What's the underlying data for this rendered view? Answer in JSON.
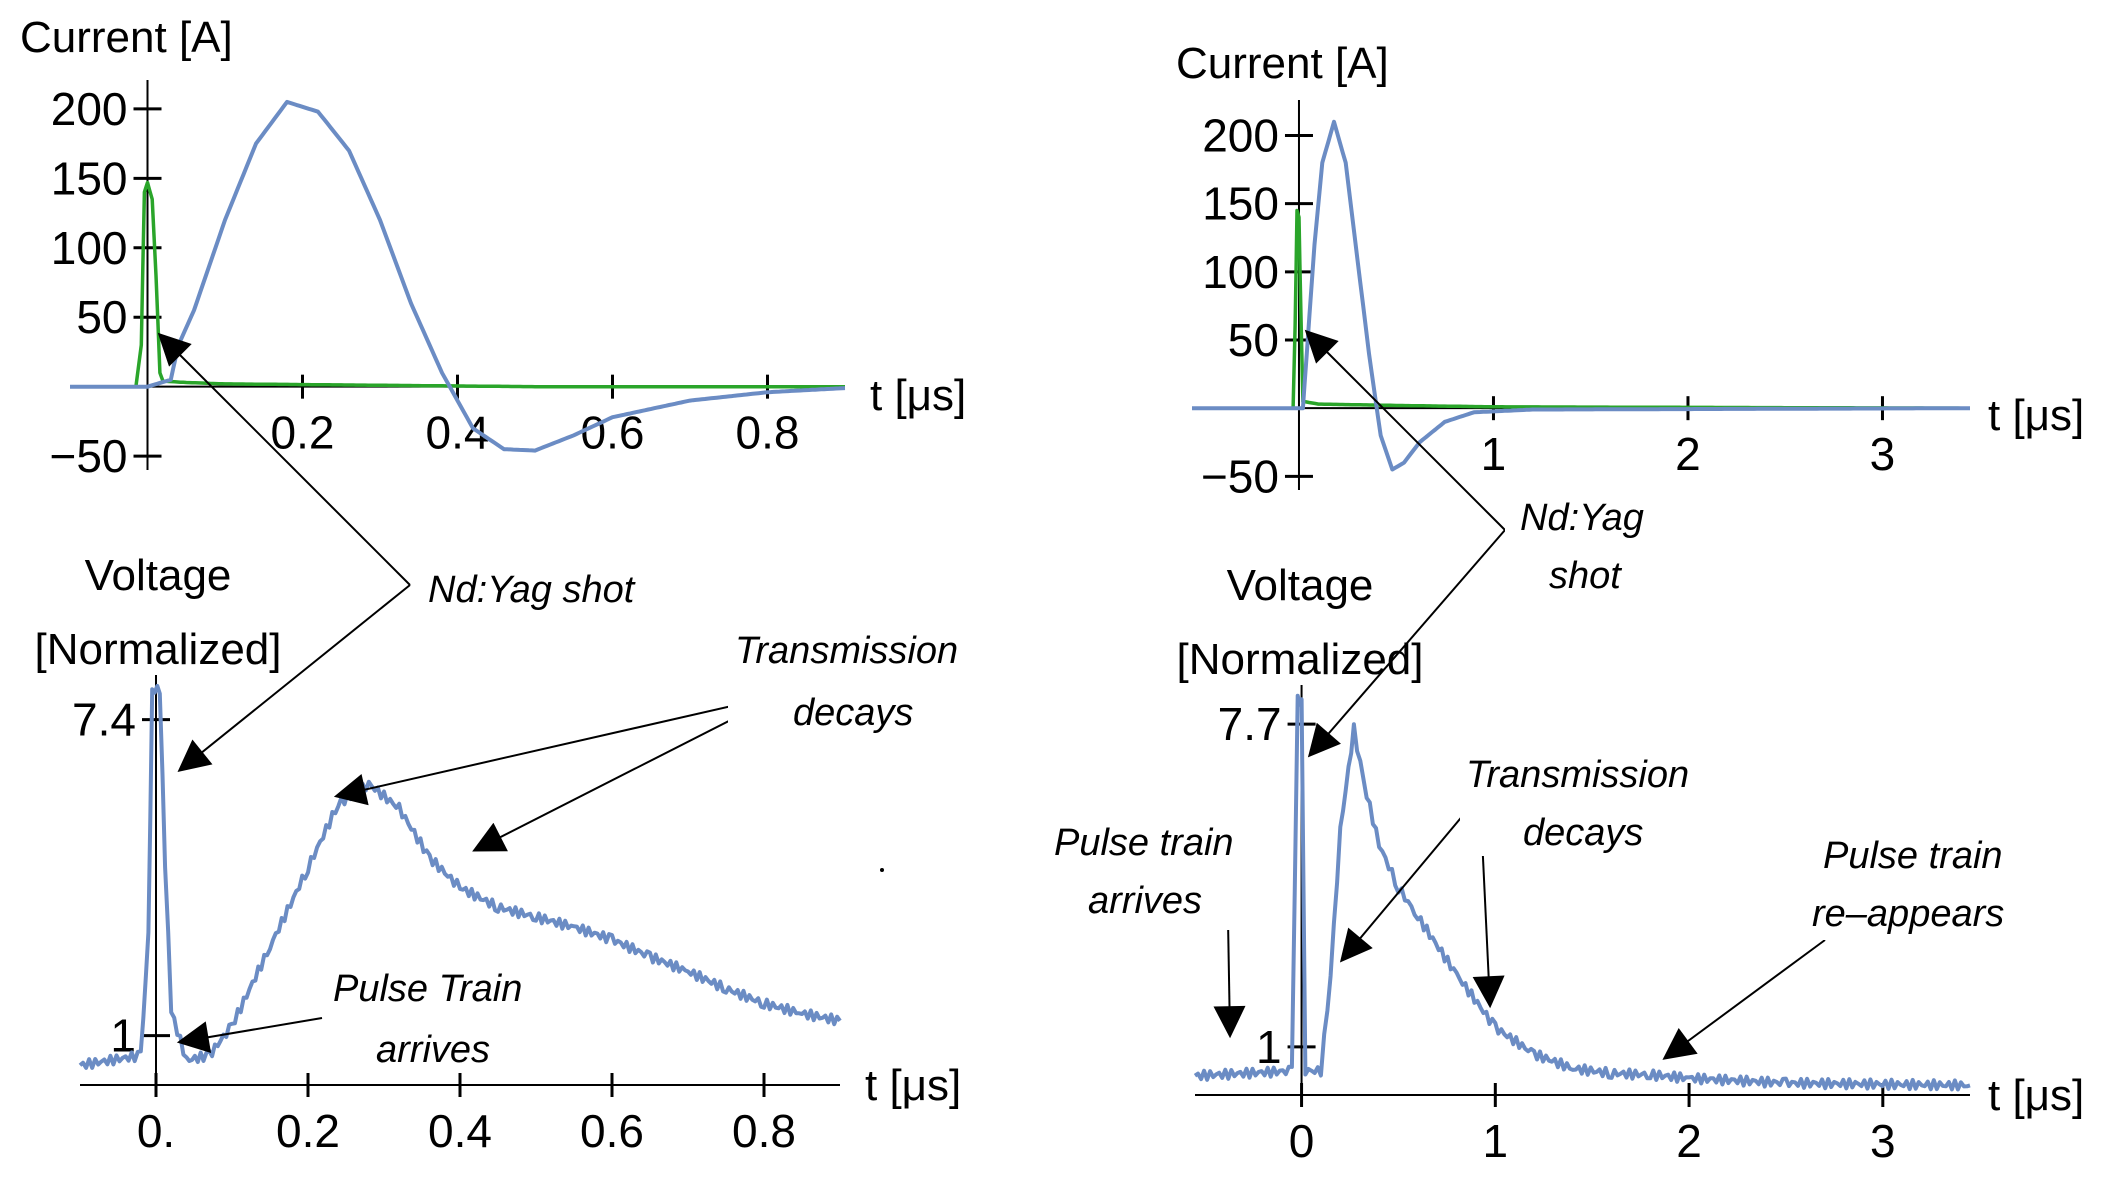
{
  "colors": {
    "laser": "#2aa52a",
    "signal": "#6b8cc4",
    "axis": "#000000"
  },
  "chart_data": [
    {
      "id": "left-current",
      "type": "line",
      "ylabel": "Current [A]",
      "xlabel": "t [μs]",
      "xlim": [
        -0.1,
        0.9
      ],
      "ylim": [
        -60,
        210
      ],
      "x_ticks": [
        "0.2",
        "0.4",
        "0.6",
        "0.8"
      ],
      "x_tick_values": [
        0.2,
        0.4,
        0.6,
        0.8
      ],
      "y_ticks": [
        "200",
        "150",
        "100",
        "50",
        "−50"
      ],
      "y_tick_values": [
        200,
        150,
        100,
        50,
        -50
      ],
      "series": [
        {
          "color": "#2aa52a",
          "points": [
            [
              -0.1,
              0
            ],
            [
              -0.015,
              0
            ],
            [
              -0.008,
              30
            ],
            [
              -0.004,
              140
            ],
            [
              0.0,
              147
            ],
            [
              0.006,
              135
            ],
            [
              0.011,
              80
            ],
            [
              0.016,
              10
            ],
            [
              0.02,
              4
            ],
            [
              0.05,
              3
            ],
            [
              0.1,
              2
            ],
            [
              0.3,
              1
            ],
            [
              0.5,
              0
            ],
            [
              0.9,
              0
            ]
          ]
        },
        {
          "color": "#6b8cc4",
          "points": [
            [
              -0.1,
              0
            ],
            [
              0.0,
              0
            ],
            [
              0.03,
              5
            ],
            [
              0.04,
              30
            ],
            [
              0.06,
              55
            ],
            [
              0.1,
              120
            ],
            [
              0.14,
              175
            ],
            [
              0.18,
              205
            ],
            [
              0.22,
              198
            ],
            [
              0.26,
              170
            ],
            [
              0.3,
              120
            ],
            [
              0.34,
              60
            ],
            [
              0.38,
              10
            ],
            [
              0.42,
              -30
            ],
            [
              0.46,
              -45
            ],
            [
              0.5,
              -46
            ],
            [
              0.55,
              -35
            ],
            [
              0.6,
              -22
            ],
            [
              0.7,
              -10
            ],
            [
              0.8,
              -4
            ],
            [
              0.9,
              -1
            ]
          ]
        }
      ]
    },
    {
      "id": "right-current",
      "type": "line",
      "ylabel": "Current [A]",
      "xlabel": "t [μs]",
      "xlim": [
        -0.55,
        3.45
      ],
      "ylim": [
        -60,
        215
      ],
      "x_ticks": [
        "1",
        "2",
        "3"
      ],
      "x_tick_values": [
        1,
        2,
        3
      ],
      "y_ticks": [
        "200",
        "150",
        "100",
        "50",
        "−50"
      ],
      "y_tick_values": [
        200,
        150,
        100,
        50,
        -50
      ],
      "series": [
        {
          "color": "#2aa52a",
          "points": [
            [
              -0.55,
              0
            ],
            [
              -0.03,
              0
            ],
            [
              -0.02,
              60
            ],
            [
              -0.01,
              145
            ],
            [
              0.0,
              140
            ],
            [
              0.01,
              70
            ],
            [
              0.02,
              5
            ],
            [
              0.1,
              3
            ],
            [
              0.5,
              2
            ],
            [
              1.0,
              1
            ],
            [
              3.45,
              0
            ]
          ]
        },
        {
          "color": "#6b8cc4",
          "points": [
            [
              -0.55,
              0
            ],
            [
              0.02,
              0
            ],
            [
              0.04,
              40
            ],
            [
              0.08,
              120
            ],
            [
              0.12,
              180
            ],
            [
              0.18,
              210
            ],
            [
              0.24,
              180
            ],
            [
              0.3,
              110
            ],
            [
              0.36,
              40
            ],
            [
              0.42,
              -20
            ],
            [
              0.48,
              -45
            ],
            [
              0.54,
              -40
            ],
            [
              0.62,
              -25
            ],
            [
              0.75,
              -10
            ],
            [
              0.9,
              -3
            ],
            [
              1.2,
              -1
            ],
            [
              3.45,
              0
            ]
          ]
        }
      ]
    },
    {
      "id": "left-voltage",
      "type": "line",
      "ylabel_lines": [
        "Voltage",
        "[Normalized]"
      ],
      "xlabel": "t [μs]",
      "xlim": [
        -0.1,
        0.9
      ],
      "ylim": [
        0,
        8.0
      ],
      "x_ticks": [
        "0.",
        "0.2",
        "0.4",
        "0.6",
        "0.8"
      ],
      "x_tick_values": [
        0,
        0.2,
        0.4,
        0.6,
        0.8
      ],
      "y_ticks": [
        "7.4",
        "1"
      ],
      "y_tick_values": [
        7.4,
        1
      ],
      "series": [
        {
          "color": "#6b8cc4",
          "points": [
            [
              -0.1,
              0.4
            ],
            [
              -0.02,
              0.6
            ],
            [
              -0.01,
              3.0
            ],
            [
              -0.005,
              8.0
            ],
            [
              0.005,
              8.0
            ],
            [
              0.012,
              4.5
            ],
            [
              0.02,
              1.5
            ],
            [
              0.04,
              0.5
            ],
            [
              0.07,
              0.6
            ],
            [
              0.1,
              1.2
            ],
            [
              0.15,
              2.8
            ],
            [
              0.2,
              4.4
            ],
            [
              0.24,
              5.7
            ],
            [
              0.28,
              6.1
            ],
            [
              0.32,
              5.6
            ],
            [
              0.36,
              4.6
            ],
            [
              0.4,
              4.0
            ],
            [
              0.45,
              3.6
            ],
            [
              0.5,
              3.4
            ],
            [
              0.55,
              3.2
            ],
            [
              0.6,
              2.95
            ],
            [
              0.65,
              2.6
            ],
            [
              0.7,
              2.3
            ],
            [
              0.75,
              1.95
            ],
            [
              0.8,
              1.65
            ],
            [
              0.85,
              1.45
            ],
            [
              0.9,
              1.3
            ]
          ]
        }
      ]
    },
    {
      "id": "right-voltage",
      "type": "line",
      "ylabel_lines": [
        "Voltage",
        "[Normalized]"
      ],
      "xlabel": "t [μs]",
      "xlim": [
        -0.55,
        3.45
      ],
      "ylim": [
        0,
        8.2
      ],
      "x_ticks": [
        "0",
        "1",
        "2",
        "3"
      ],
      "x_tick_values": [
        0,
        1,
        2,
        3
      ],
      "y_ticks": [
        "7.7",
        "1"
      ],
      "y_tick_values": [
        7.7,
        1
      ],
      "series": [
        {
          "color": "#6b8cc4",
          "points": [
            [
              -0.55,
              0.4
            ],
            [
              -0.05,
              0.5
            ],
            [
              -0.02,
              8.2
            ],
            [
              0.0,
              8.2
            ],
            [
              0.02,
              0.5
            ],
            [
              0.1,
              0.5
            ],
            [
              0.15,
              2.5
            ],
            [
              0.2,
              5.5
            ],
            [
              0.27,
              7.6
            ],
            [
              0.32,
              6.5
            ],
            [
              0.4,
              5.2
            ],
            [
              0.5,
              4.3
            ],
            [
              0.6,
              3.7
            ],
            [
              0.8,
              2.5
            ],
            [
              1.0,
              1.4
            ],
            [
              1.2,
              0.85
            ],
            [
              1.4,
              0.55
            ],
            [
              1.6,
              0.45
            ],
            [
              1.8,
              0.42
            ],
            [
              2.0,
              0.35
            ],
            [
              2.5,
              0.25
            ],
            [
              3.45,
              0.2
            ]
          ]
        }
      ]
    }
  ],
  "annotations": {
    "left_ndyag": "Nd:Yag shot",
    "left_transmission_1": "Transmission",
    "left_transmission_2": "decays",
    "left_pulse_1": "Pulse Train",
    "left_pulse_2": "arrives",
    "right_ndyag_1": "Nd:Yag",
    "right_ndyag_2": "shot",
    "right_transmission_1": "Transmission",
    "right_transmission_2": "decays",
    "right_pulse_1": "Pulse train",
    "right_pulse_2": "arrives",
    "right_reappear_1": "Pulse train",
    "right_reappear_2": "re–appears"
  }
}
